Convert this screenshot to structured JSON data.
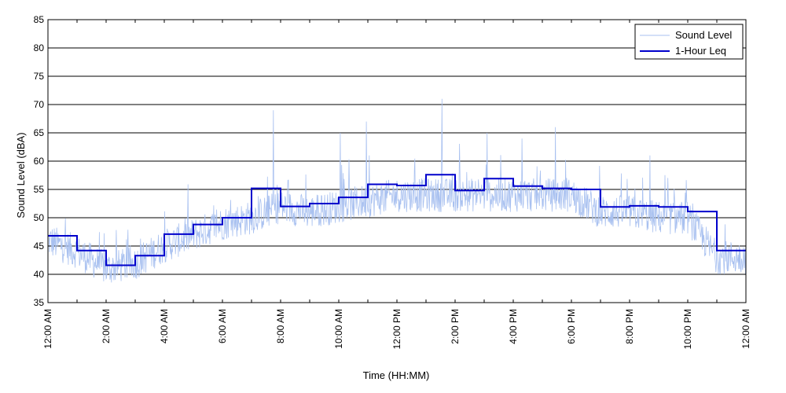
{
  "chart_data": {
    "type": "line",
    "title": "",
    "xlabel": "Time (HH:MM)",
    "ylabel": "Sound Level (dBA)",
    "ylim": [
      35,
      85
    ],
    "yticks": [
      35,
      40,
      45,
      50,
      55,
      60,
      65,
      70,
      75,
      80,
      85
    ],
    "xlim": [
      0,
      24
    ],
    "xticks": [
      {
        "hour": 0,
        "label": "12:00 AM"
      },
      {
        "hour": 2,
        "label": "2:00 AM"
      },
      {
        "hour": 4,
        "label": "4:00 AM"
      },
      {
        "hour": 6,
        "label": "6:00 AM"
      },
      {
        "hour": 8,
        "label": "8:00 AM"
      },
      {
        "hour": 10,
        "label": "10:00 AM"
      },
      {
        "hour": 12,
        "label": "12:00 PM"
      },
      {
        "hour": 14,
        "label": "2:00 PM"
      },
      {
        "hour": 16,
        "label": "4:00 PM"
      },
      {
        "hour": 18,
        "label": "6:00 PM"
      },
      {
        "hour": 20,
        "label": "8:00 PM"
      },
      {
        "hour": 22,
        "label": "10:00 PM"
      },
      {
        "hour": 24,
        "label": "12:00 AM"
      }
    ],
    "grid": "horizontal",
    "legend_position": "top-right",
    "series": [
      {
        "name": "Sound Level",
        "color": "#a9c1f0",
        "style": "thin-noisy-line",
        "approx_hourly_base": [
          46,
          44,
          41,
          42,
          45,
          47,
          49,
          50,
          52,
          51,
          52,
          53,
          54,
          54,
          54,
          54,
          54,
          54,
          54,
          51,
          51,
          50,
          50,
          43
        ],
        "notable_peaks": [
          {
            "hour": 7.75,
            "value": 69
          },
          {
            "hour": 10.05,
            "value": 65
          },
          {
            "hour": 10.95,
            "value": 67
          },
          {
            "hour": 11.05,
            "value": 61
          },
          {
            "hour": 13.55,
            "value": 71
          },
          {
            "hour": 15.1,
            "value": 65
          },
          {
            "hour": 16.3,
            "value": 64
          },
          {
            "hour": 17.45,
            "value": 66
          },
          {
            "hour": 20.7,
            "value": 61
          }
        ]
      },
      {
        "name": "1-Hour Leq",
        "color": "#0000cc",
        "style": "step",
        "values": [
          46.8,
          44.2,
          41.6,
          43.3,
          47.1,
          48.8,
          50.0,
          55.2,
          52.0,
          52.5,
          53.6,
          55.9,
          55.7,
          57.6,
          54.8,
          56.9,
          55.6,
          55.2,
          55.0,
          51.9,
          52.1,
          51.9,
          51.1,
          44.2
        ]
      }
    ]
  }
}
